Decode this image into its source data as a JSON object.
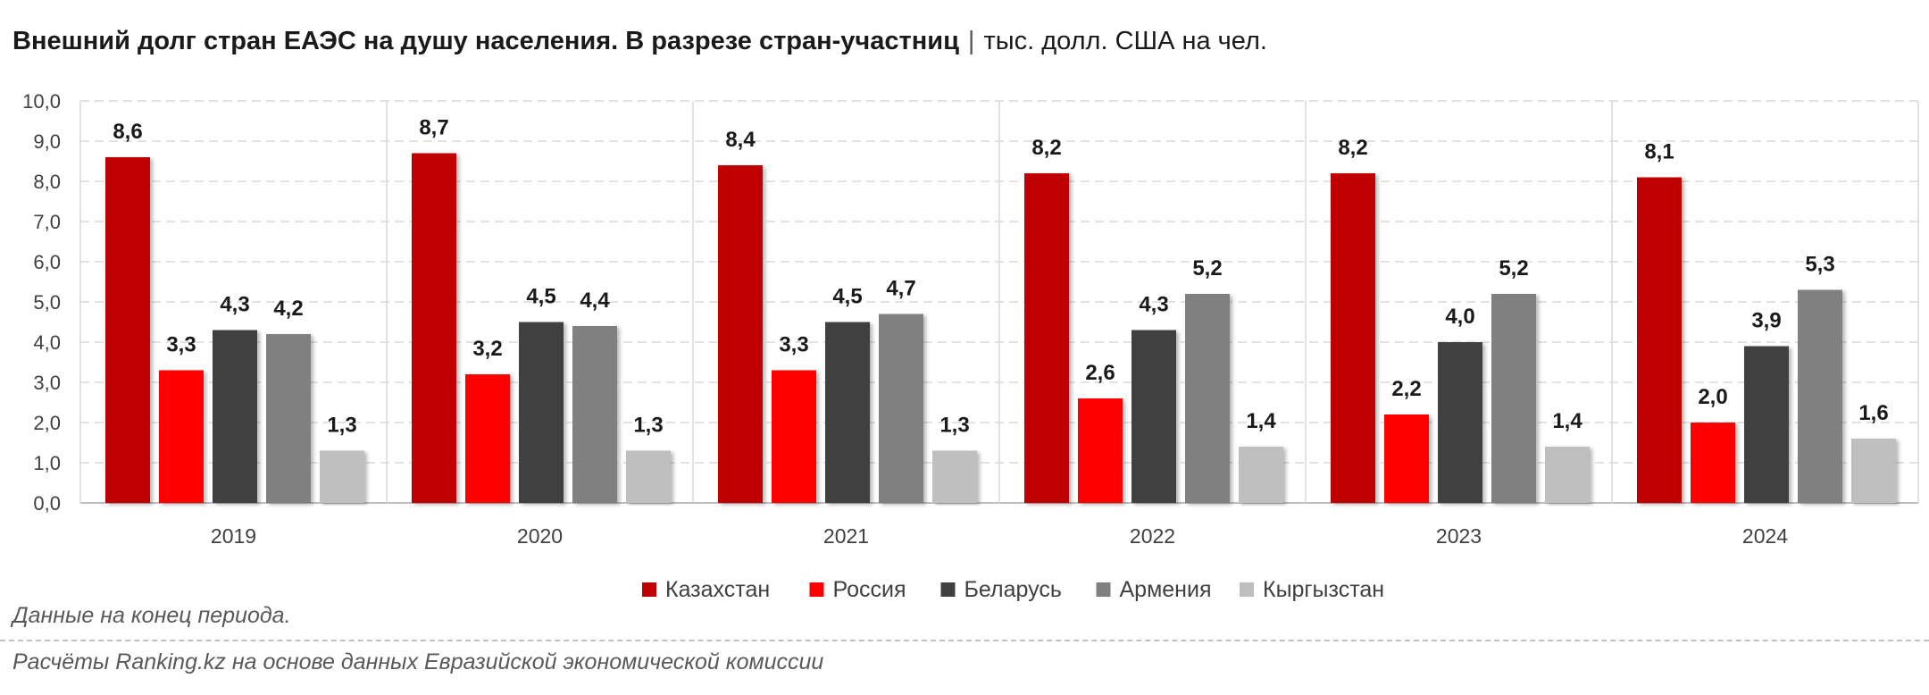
{
  "header": {
    "title": "Внешний долг стран ЕАЭС на душу населения. В разрезе стран-участниц",
    "separator": "|",
    "unit": "тыс. долл. США на чел."
  },
  "footer": {
    "note": "Данные на конец периода.",
    "source": "Расчёты Ranking.kz на основе данных Евразийской экономической комиссии"
  },
  "chart_data": {
    "type": "bar",
    "categories": [
      "2019",
      "2020",
      "2021",
      "2022",
      "2023",
      "2024"
    ],
    "ylim": [
      0,
      10
    ],
    "yticks": [
      "0,0",
      "1,0",
      "2,0",
      "3,0",
      "4,0",
      "5,0",
      "6,0",
      "7,0",
      "8,0",
      "9,0",
      "10,0"
    ],
    "grid": true,
    "legend_position": "bottom",
    "series": [
      {
        "name": "Казахстан",
        "color": "#c00000",
        "values": [
          8.6,
          8.7,
          8.4,
          8.2,
          8.2,
          8.1
        ],
        "labels": [
          "8,6",
          "8,7",
          "8,4",
          "8,2",
          "8,2",
          "8,1"
        ]
      },
      {
        "name": "Россия",
        "color": "#ff0000",
        "values": [
          3.3,
          3.2,
          3.3,
          2.6,
          2.2,
          2.0
        ],
        "labels": [
          "3,3",
          "3,2",
          "3,3",
          "2,6",
          "2,2",
          "2,0"
        ]
      },
      {
        "name": "Беларусь",
        "color": "#404040",
        "values": [
          4.3,
          4.5,
          4.5,
          4.3,
          4.0,
          3.9
        ],
        "labels": [
          "4,3",
          "4,5",
          "4,5",
          "4,3",
          "4,0",
          "3,9"
        ]
      },
      {
        "name": "Армения",
        "color": "#808080",
        "values": [
          4.2,
          4.4,
          4.7,
          5.2,
          5.2,
          5.3
        ],
        "labels": [
          "4,2",
          "4,4",
          "4,7",
          "5,2",
          "5,2",
          "5,3"
        ]
      },
      {
        "name": "Кыргызстан",
        "color": "#bfbfbf",
        "values": [
          1.3,
          1.3,
          1.3,
          1.4,
          1.4,
          1.6
        ],
        "labels": [
          "1,3",
          "1,3",
          "1,3",
          "1,4",
          "1,4",
          "1,6"
        ]
      }
    ]
  }
}
